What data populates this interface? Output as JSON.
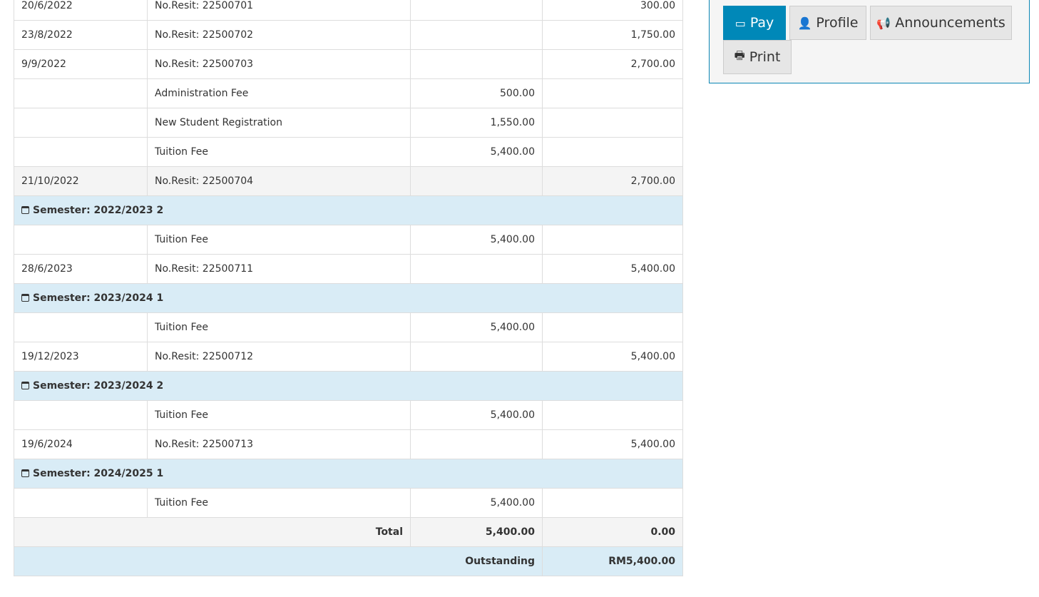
{
  "ledger": {
    "rows": [
      {
        "type": "receipt",
        "date": "20/6/2022",
        "desc": "No.Resit: 22500701",
        "debit": "",
        "credit": "300.00"
      },
      {
        "type": "receipt",
        "date": "23/8/2022",
        "desc": "No.Resit: 22500702",
        "debit": "",
        "credit": "1,750.00"
      },
      {
        "type": "receipt",
        "date": "9/9/2022",
        "desc": "No.Resit: 22500703",
        "debit": "",
        "credit": "2,700.00"
      },
      {
        "type": "fee",
        "date": "",
        "desc": "Administration Fee",
        "debit": "500.00",
        "credit": ""
      },
      {
        "type": "fee",
        "date": "",
        "desc": "New Student Registration",
        "debit": "1,550.00",
        "credit": ""
      },
      {
        "type": "fee",
        "date": "",
        "desc": "Tuition Fee",
        "debit": "5,400.00",
        "credit": ""
      },
      {
        "type": "shade",
        "date": "21/10/2022",
        "desc": "No.Resit: 22500704",
        "debit": "",
        "credit": "2,700.00"
      },
      {
        "type": "semester",
        "label": "Semester: 2022/2023 2"
      },
      {
        "type": "fee",
        "date": "",
        "desc": "Tuition Fee",
        "debit": "5,400.00",
        "credit": ""
      },
      {
        "type": "receipt",
        "date": "28/6/2023",
        "desc": "No.Resit: 22500711",
        "debit": "",
        "credit": "5,400.00"
      },
      {
        "type": "semester",
        "label": "Semester: 2023/2024 1"
      },
      {
        "type": "fee",
        "date": "",
        "desc": "Tuition Fee",
        "debit": "5,400.00",
        "credit": ""
      },
      {
        "type": "receipt",
        "date": "19/12/2023",
        "desc": "No.Resit: 22500712",
        "debit": "",
        "credit": "5,400.00"
      },
      {
        "type": "semester",
        "label": "Semester: 2023/2024 2"
      },
      {
        "type": "fee",
        "date": "",
        "desc": "Tuition Fee",
        "debit": "5,400.00",
        "credit": ""
      },
      {
        "type": "receipt",
        "date": "19/6/2024",
        "desc": "No.Resit: 22500713",
        "debit": "",
        "credit": "5,400.00"
      },
      {
        "type": "semester",
        "label": "Semester: 2024/2025 1"
      },
      {
        "type": "fee",
        "date": "",
        "desc": "Tuition Fee",
        "debit": "5,400.00",
        "credit": ""
      }
    ],
    "total": {
      "label": "Total",
      "debit": "5,400.00",
      "credit": "0.00"
    },
    "outstanding": {
      "label": "Outstanding",
      "value": "RM5,400.00"
    }
  },
  "actions": {
    "pay": "Pay",
    "profile": "Profile",
    "announcements": "Announcements",
    "print": "Print"
  },
  "colors": {
    "primary": "#0088b8",
    "semester_row": "#d9ecf6"
  }
}
